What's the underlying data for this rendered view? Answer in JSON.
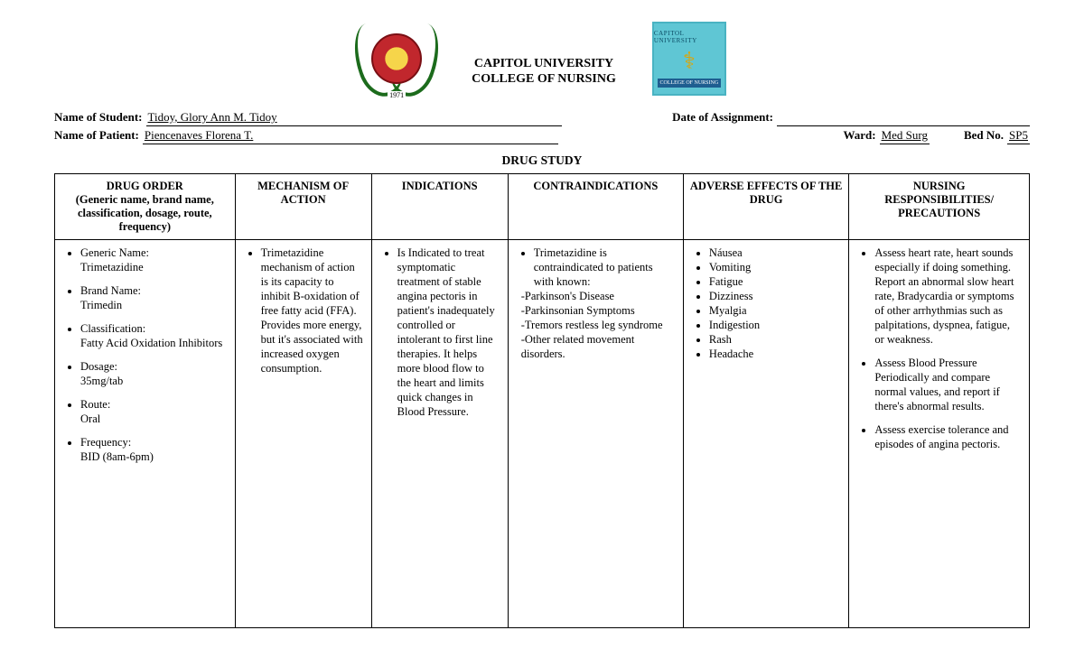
{
  "header": {
    "university": "CAPITOL UNIVERSITY",
    "college": "COLLEGE OF NURSING",
    "left_logo_year": "1971"
  },
  "info": {
    "student_label": "Name of Student:",
    "student_value": "Tidoy, Glory Ann M. Tidoy",
    "date_label": "Date of Assignment:",
    "date_value": "",
    "patient_label": "Name of Patient:",
    "patient_value": "  Piencenaves Florena T.",
    "ward_label": "Ward:",
    "ward_value": "      Med Surg",
    "bed_label": "Bed No.",
    "bed_value": "          SP5"
  },
  "section_title": "DRUG STUDY",
  "columns": {
    "c1a": "DRUG ORDER",
    "c1b": "(Generic name, brand name, classification, dosage, route, frequency)",
    "c2": "MECHANISM OF ACTION",
    "c3": "INDICATIONS",
    "c4": "CONTRAINDICATIONS",
    "c5": "ADVERSE EFFECTS OF THE DRUG",
    "c6a": "NURSING",
    "c6b": "RESPONSIBILITIES/ PRECAUTIONS"
  },
  "drug_order": [
    {
      "label": "Generic Name:",
      "value": "Trimetazidine"
    },
    {
      "label": "Brand Name:",
      "value": "Trimedin"
    },
    {
      "label": "Classification:",
      "value": "Fatty Acid Oxidation Inhibitors"
    },
    {
      "label": "Dosage:",
      "value": "35mg/tab"
    },
    {
      "label": "Route:",
      "value": "Oral"
    },
    {
      "label": "Frequency:",
      "value": "BID (8am-6pm)"
    }
  ],
  "mechanism": "Trimetazidine mechanism of action is its capacity to inhibit B-oxidation of free fatty acid (FFA). Provides more energy, but it's associated with increased oxygen consumption.",
  "indications": "Is Indicated to treat symptomatic treatment of stable angina pectoris in patient's inadequately controlled or intolerant to first line therapies. It helps more blood flow to the heart and limits quick changes in Blood Pressure.",
  "contra": {
    "lead": "Trimetazidine is contraindicated to patients with known:",
    "items": [
      "-Parkinson's Disease",
      "-Parkinsonian Symptoms",
      "-Tremors restless leg syndrome",
      "-Other related movement disorders."
    ]
  },
  "adverse": [
    "Náusea",
    "Vomiting",
    "Fatigue",
    "Dizziness",
    "Myalgia",
    "Indigestion",
    "Rash",
    "Headache"
  ],
  "nursing": [
    "Assess heart rate, heart sounds especially if doing something. Report an abnormal slow heart rate, Bradycardia or symptoms of other arrhythmias such as palpitations, dyspnea, fatigue, or weakness.",
    "Assess Blood Pressure Periodically and compare normal values, and report if there's abnormal results.",
    "Assess exercise tolerance and episodes of angina pectoris."
  ]
}
